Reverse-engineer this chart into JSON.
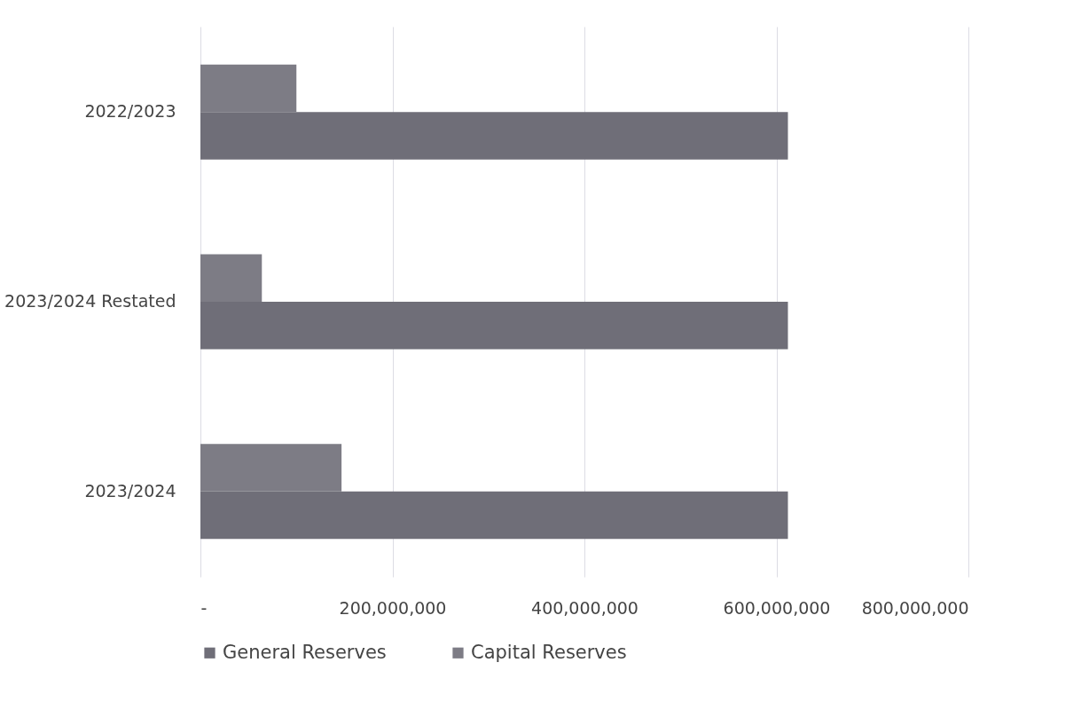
{
  "chart_data": {
    "type": "bar",
    "orientation": "horizontal",
    "categories": [
      "2022/2023",
      "2023/2024 Restated",
      "2023/2024"
    ],
    "series": [
      {
        "name": "General Reserves",
        "color": "#6f6e78",
        "values": [
          612000000,
          612000000,
          612000000
        ]
      },
      {
        "name": "Capital Reserves",
        "color": "#7d7c85",
        "values": [
          100000000,
          64000000,
          147000000
        ]
      }
    ],
    "xlim": [
      0,
      800000000
    ],
    "xticks": [
      {
        "value": 0,
        "label": "-"
      },
      {
        "value": 200000000,
        "label": "200,000,000"
      },
      {
        "value": 400000000,
        "label": "400,000,000"
      },
      {
        "value": 600000000,
        "label": "600,000,000"
      },
      {
        "value": 800000000,
        "label": "800,000,000"
      }
    ],
    "grid": "x",
    "legend": "bottom"
  }
}
